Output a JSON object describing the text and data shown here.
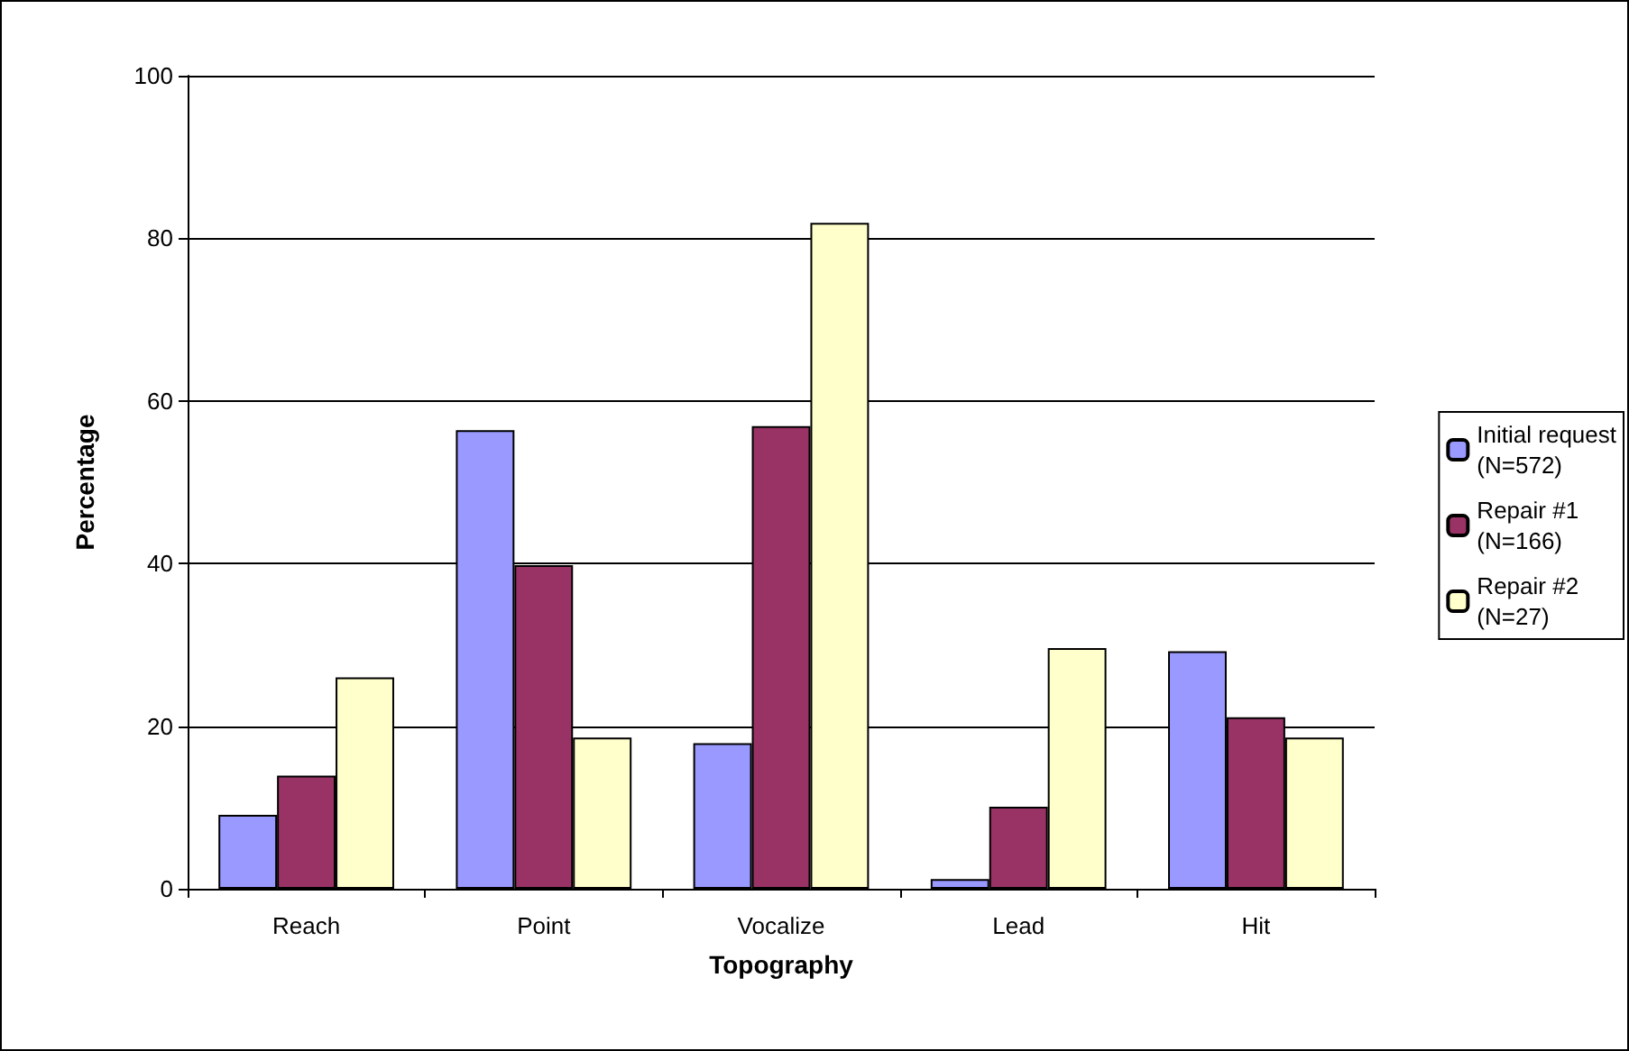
{
  "chart_data": {
    "type": "bar",
    "xlabel": "Topography",
    "ylabel": "Percentage",
    "categories": [
      "Reach",
      "Point",
      "Vocalize",
      "Lead",
      "Hit"
    ],
    "series": [
      {
        "name": "Initial request\n(N=572)",
        "color": "#9999ff",
        "values": [
          9.1,
          56.4,
          17.9,
          1.2,
          29.2
        ]
      },
      {
        "name": "Repair #1\n(N=166)",
        "color": "#993366",
        "values": [
          13.9,
          39.8,
          56.9,
          10.1,
          21.1
        ]
      },
      {
        "name": "Repair #2\n(N=27)",
        "color": "#ffffcc",
        "values": [
          26.0,
          18.6,
          81.9,
          29.6,
          18.6
        ]
      }
    ],
    "ylim": [
      0,
      100
    ],
    "yticks": [
      0,
      20,
      40,
      60,
      80,
      100
    ],
    "grid": "y",
    "legend": "right"
  }
}
